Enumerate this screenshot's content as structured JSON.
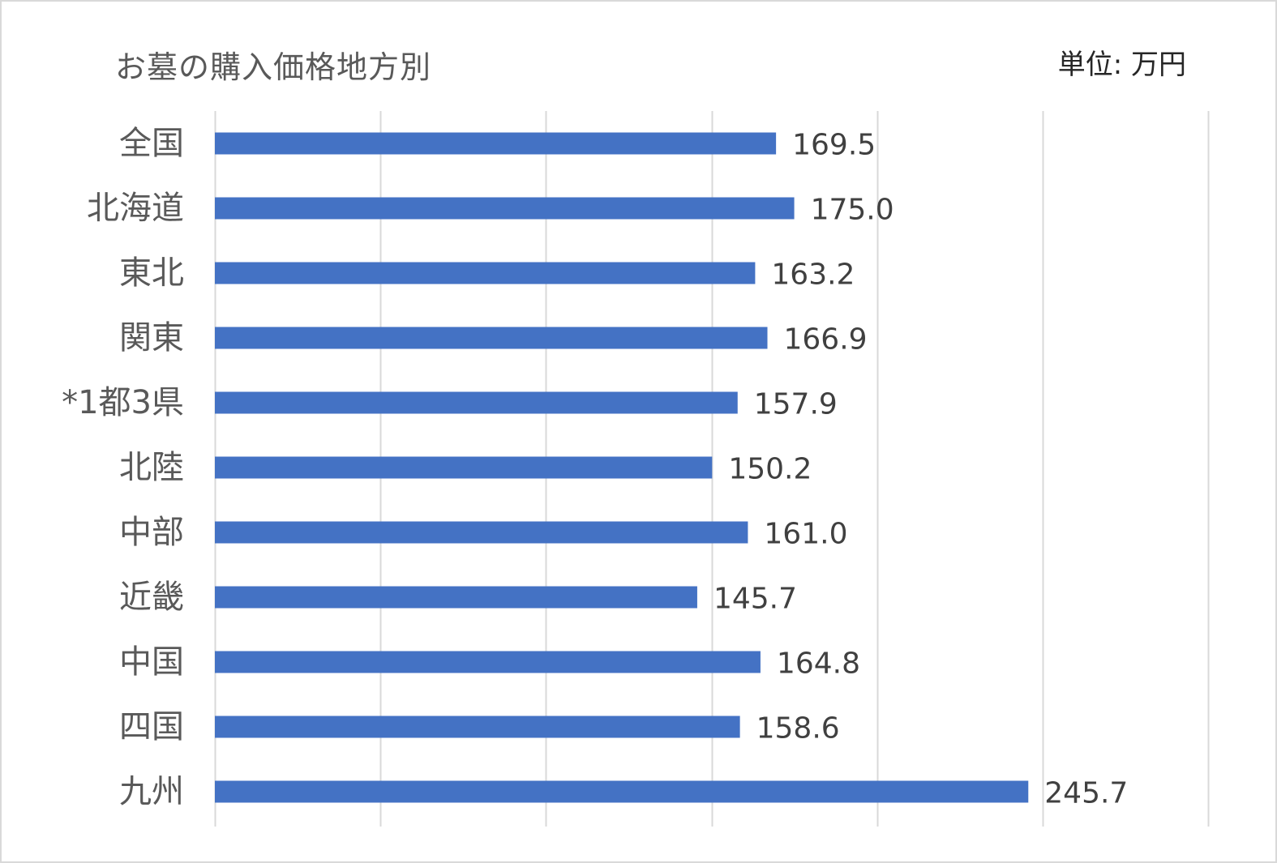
{
  "chart_data": {
    "type": "bar",
    "orientation": "horizontal",
    "title": "お墓の購入価格地方別",
    "unit_label": "単位: 万円",
    "categories": [
      "全国",
      "北海道",
      "東北",
      "関東",
      "*1都3県",
      "北陸",
      "中部",
      "近畿",
      "中国",
      "四国",
      "九州"
    ],
    "values": [
      169.5,
      175.0,
      163.2,
      166.9,
      157.9,
      150.2,
      161.0,
      145.7,
      164.8,
      158.6,
      245.7
    ],
    "value_labels": [
      "169.5",
      "175.0",
      "163.2",
      "166.9",
      "157.9",
      "150.2",
      "161.0",
      "145.7",
      "164.8",
      "158.6",
      "245.7"
    ],
    "xlim": [
      0,
      300
    ],
    "x_gridline_step": 50,
    "grid": true,
    "legend": "none",
    "bar_color": "#4472c4",
    "gridline_color": "#d9d9d9"
  }
}
